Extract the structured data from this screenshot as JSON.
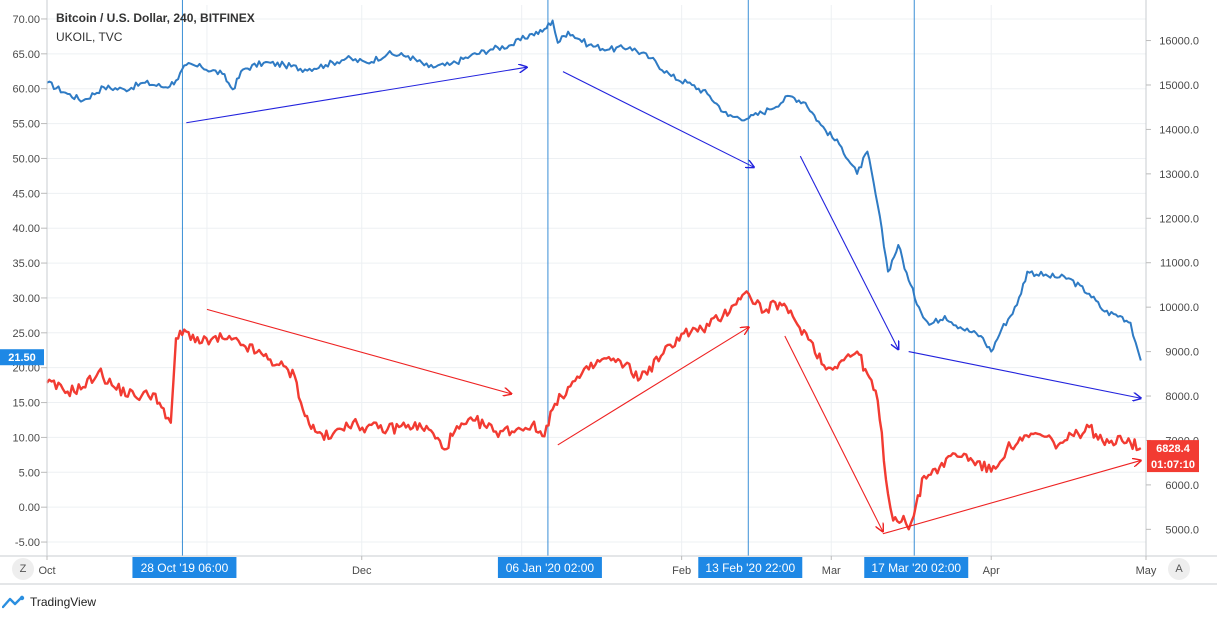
{
  "header": {
    "title": "Bitcoin / U.S. Dollar, 240, BITFINEX",
    "subtitle": "UKOIL, TVC"
  },
  "colors": {
    "btc": "#2f7bc4",
    "oil": "#f23b32",
    "btc_arrow": "#2222dd",
    "oil_arrow": "#ee2222",
    "vline": "#3a8fd6",
    "xtag": "#1e88e5",
    "grid": "#edf0f3"
  },
  "left_axis": {
    "ticks": [
      "70.00",
      "65.00",
      "60.00",
      "55.00",
      "50.00",
      "45.00",
      "40.00",
      "35.00",
      "30.00",
      "25.00",
      "20.00",
      "15.00",
      "10.00",
      "5.00",
      "0.00",
      "-5.00"
    ]
  },
  "right_axis": {
    "ticks": [
      "16000.0",
      "15000.0",
      "14000.0",
      "13000.0",
      "12000.0",
      "11000.0",
      "10000.0",
      "9000.0",
      "8000.0",
      "7000.0",
      "6000.0",
      "5000.0"
    ]
  },
  "x_axis": {
    "labels": [
      "Oct",
      "Dec",
      "Feb",
      "Mar",
      "Apr",
      "May"
    ]
  },
  "price_tags": {
    "left_value": "21.50",
    "right_value": "6828.4",
    "right_time": "01:07:10"
  },
  "crosshair_dates": [
    "28 Oct '19   06:00",
    "06 Jan '20   02:00",
    "13 Feb '20   22:00",
    "17 Mar '20   02:00"
  ],
  "corner_buttons": {
    "left": "Z",
    "right": "A"
  },
  "brand": {
    "name": "TradingView"
  },
  "chart_data": {
    "type": "line",
    "title": "Bitcoin / U.S. Dollar, 240, BITFINEX",
    "subtitle": "UKOIL, TVC",
    "x_range": [
      "2019-10-01",
      "2020-05-01"
    ],
    "left_axis_range": [
      -7,
      72
    ],
    "right_axis_range": [
      4400,
      16800
    ],
    "grid": true,
    "series": [
      {
        "name": "UKOIL, TVC",
        "axis": "right",
        "points": [
          [
            "2019-10-01",
            15050
          ],
          [
            "2019-10-05",
            14800
          ],
          [
            "2019-10-08",
            14650
          ],
          [
            "2019-10-12",
            14950
          ],
          [
            "2019-10-16",
            14900
          ],
          [
            "2019-10-20",
            15050
          ],
          [
            "2019-10-24",
            14950
          ],
          [
            "2019-10-26",
            15100
          ],
          [
            "2019-10-28",
            15450
          ],
          [
            "2019-10-31",
            15400
          ],
          [
            "2019-11-04",
            15250
          ],
          [
            "2019-11-06",
            14900
          ],
          [
            "2019-11-08",
            15350
          ],
          [
            "2019-11-12",
            15500
          ],
          [
            "2019-11-16",
            15450
          ],
          [
            "2019-11-20",
            15350
          ],
          [
            "2019-11-24",
            15450
          ],
          [
            "2019-11-28",
            15600
          ],
          [
            "2019-12-02",
            15500
          ],
          [
            "2019-12-06",
            15700
          ],
          [
            "2019-12-10",
            15650
          ],
          [
            "2019-12-14",
            15400
          ],
          [
            "2019-12-18",
            15450
          ],
          [
            "2019-12-22",
            15650
          ],
          [
            "2019-12-26",
            15800
          ],
          [
            "2019-12-30",
            15900
          ],
          [
            "2020-01-03",
            16150
          ],
          [
            "2020-01-05",
            16200
          ],
          [
            "2020-01-07",
            16450
          ],
          [
            "2020-01-08",
            15950
          ],
          [
            "2020-01-10",
            16200
          ],
          [
            "2020-01-14",
            15900
          ],
          [
            "2020-01-18",
            15800
          ],
          [
            "2020-01-22",
            15850
          ],
          [
            "2020-01-26",
            15600
          ],
          [
            "2020-01-30",
            15200
          ],
          [
            "2020-02-03",
            15000
          ],
          [
            "2020-02-06",
            14800
          ],
          [
            "2020-02-10",
            14300
          ],
          [
            "2020-02-14",
            14250
          ],
          [
            "2020-02-18",
            14450
          ],
          [
            "2020-02-22",
            14750
          ],
          [
            "2020-02-25",
            14600
          ],
          [
            "2020-02-28",
            14100
          ],
          [
            "2020-03-03",
            13600
          ],
          [
            "2020-03-06",
            13000
          ],
          [
            "2020-03-08",
            13500
          ],
          [
            "2020-03-10",
            12300
          ],
          [
            "2020-03-12",
            10800
          ],
          [
            "2020-03-14",
            11400
          ],
          [
            "2020-03-16",
            10600
          ],
          [
            "2020-03-18",
            10000
          ],
          [
            "2020-03-20",
            9600
          ],
          [
            "2020-03-23",
            9800
          ],
          [
            "2020-03-26",
            9550
          ],
          [
            "2020-03-30",
            9350
          ],
          [
            "2020-04-01",
            9000
          ],
          [
            "2020-04-03",
            9500
          ],
          [
            "2020-04-06",
            10050
          ],
          [
            "2020-04-08",
            10800
          ],
          [
            "2020-04-12",
            10700
          ],
          [
            "2020-04-16",
            10650
          ],
          [
            "2020-04-20",
            10300
          ],
          [
            "2020-04-23",
            9900
          ],
          [
            "2020-04-26",
            9800
          ],
          [
            "2020-04-28",
            9650
          ],
          [
            "2020-04-29",
            9200
          ],
          [
            "2020-04-30",
            8800
          ]
        ]
      },
      {
        "name": "Bitcoin / U.S. Dollar, 240, BITFINEX",
        "axis": "right",
        "points": [
          [
            "2019-10-01",
            8300
          ],
          [
            "2019-10-05",
            8100
          ],
          [
            "2019-10-08",
            8200
          ],
          [
            "2019-10-11",
            8550
          ],
          [
            "2019-10-14",
            8200
          ],
          [
            "2019-10-18",
            8000
          ],
          [
            "2019-10-22",
            8050
          ],
          [
            "2019-10-24",
            7500
          ],
          [
            "2019-10-25",
            7400
          ],
          [
            "2019-10-26",
            9300
          ],
          [
            "2019-10-28",
            9450
          ],
          [
            "2019-10-31",
            9200
          ],
          [
            "2019-11-04",
            9300
          ],
          [
            "2019-11-08",
            9150
          ],
          [
            "2019-11-12",
            8900
          ],
          [
            "2019-11-15",
            8700
          ],
          [
            "2019-11-18",
            8450
          ],
          [
            "2019-11-20",
            7550
          ],
          [
            "2019-11-22",
            7200
          ],
          [
            "2019-11-25",
            7050
          ],
          [
            "2019-11-28",
            7400
          ],
          [
            "2019-12-02",
            7300
          ],
          [
            "2019-12-06",
            7250
          ],
          [
            "2019-12-10",
            7350
          ],
          [
            "2019-12-14",
            7250
          ],
          [
            "2019-12-17",
            6800
          ],
          [
            "2019-12-19",
            7200
          ],
          [
            "2019-12-23",
            7450
          ],
          [
            "2019-12-27",
            7200
          ],
          [
            "2019-12-31",
            7250
          ],
          [
            "2020-01-03",
            7350
          ],
          [
            "2020-01-05",
            7100
          ],
          [
            "2020-01-07",
            7700
          ],
          [
            "2020-01-10",
            8200
          ],
          [
            "2020-01-14",
            8600
          ],
          [
            "2020-01-17",
            8850
          ],
          [
            "2020-01-21",
            8700
          ],
          [
            "2020-01-24",
            8400
          ],
          [
            "2020-01-28",
            8900
          ],
          [
            "2020-02-01",
            9400
          ],
          [
            "2020-02-05",
            9500
          ],
          [
            "2020-02-09",
            9800
          ],
          [
            "2020-02-12",
            10200
          ],
          [
            "2020-02-14",
            10300
          ],
          [
            "2020-02-17",
            9900
          ],
          [
            "2020-02-20",
            10100
          ],
          [
            "2020-02-23",
            9700
          ],
          [
            "2020-02-26",
            9250
          ],
          [
            "2020-02-29",
            8600
          ],
          [
            "2020-03-03",
            8800
          ],
          [
            "2020-03-06",
            9000
          ],
          [
            "2020-03-08",
            8500
          ],
          [
            "2020-03-10",
            7900
          ],
          [
            "2020-03-12",
            5800
          ],
          [
            "2020-03-13",
            5200
          ],
          [
            "2020-03-15",
            5300
          ],
          [
            "2020-03-16",
            5000
          ],
          [
            "2020-03-17",
            5300
          ],
          [
            "2020-03-19",
            6200
          ],
          [
            "2020-03-22",
            6400
          ],
          [
            "2020-03-25",
            6700
          ],
          [
            "2020-03-28",
            6600
          ],
          [
            "2020-04-01",
            6300
          ],
          [
            "2020-04-04",
            6800
          ],
          [
            "2020-04-07",
            7000
          ],
          [
            "2020-04-10",
            7150
          ],
          [
            "2020-04-14",
            6900
          ],
          [
            "2020-04-17",
            7100
          ],
          [
            "2020-04-20",
            7300
          ],
          [
            "2020-04-23",
            6900
          ],
          [
            "2020-04-26",
            7100
          ],
          [
            "2020-04-28",
            6950
          ],
          [
            "2020-04-30",
            6828.4
          ]
        ]
      }
    ],
    "arrows": [
      {
        "series": "UKOIL, TVC",
        "from": [
          "2019-10-28",
          14150
        ],
        "to": [
          "2020-01-02",
          15400
        ]
      },
      {
        "series": "UKOIL, TVC",
        "from": [
          "2020-01-09",
          15300
        ],
        "to": [
          "2020-02-15",
          13150
        ]
      },
      {
        "series": "UKOIL, TVC",
        "from": [
          "2020-02-24",
          13400
        ],
        "to": [
          "2020-03-14",
          9050
        ]
      },
      {
        "series": "UKOIL, TVC",
        "from": [
          "2020-03-16",
          9000
        ],
        "to": [
          "2020-04-30",
          7950
        ]
      },
      {
        "series": "Bitcoin / U.S. Dollar, 240, BITFINEX",
        "from": [
          "2019-11-01",
          9950
        ],
        "to": [
          "2019-12-30",
          8050
        ]
      },
      {
        "series": "Bitcoin / U.S. Dollar, 240, BITFINEX",
        "from": [
          "2020-01-08",
          6900
        ],
        "to": [
          "2020-02-14",
          9550
        ]
      },
      {
        "series": "Bitcoin / U.S. Dollar, 240, BITFINEX",
        "from": [
          "2020-02-21",
          9350
        ],
        "to": [
          "2020-03-11",
          4950
        ]
      },
      {
        "series": "Bitcoin / U.S. Dollar, 240, BITFINEX",
        "from": [
          "2020-03-11",
          4900
        ],
        "to": [
          "2020-04-30",
          6550
        ]
      }
    ],
    "vertical_markers": [
      "2019-10-27T06:00",
      "2020-01-06T02:00",
      "2020-02-13T22:00",
      "2020-03-17T02:00"
    ]
  }
}
